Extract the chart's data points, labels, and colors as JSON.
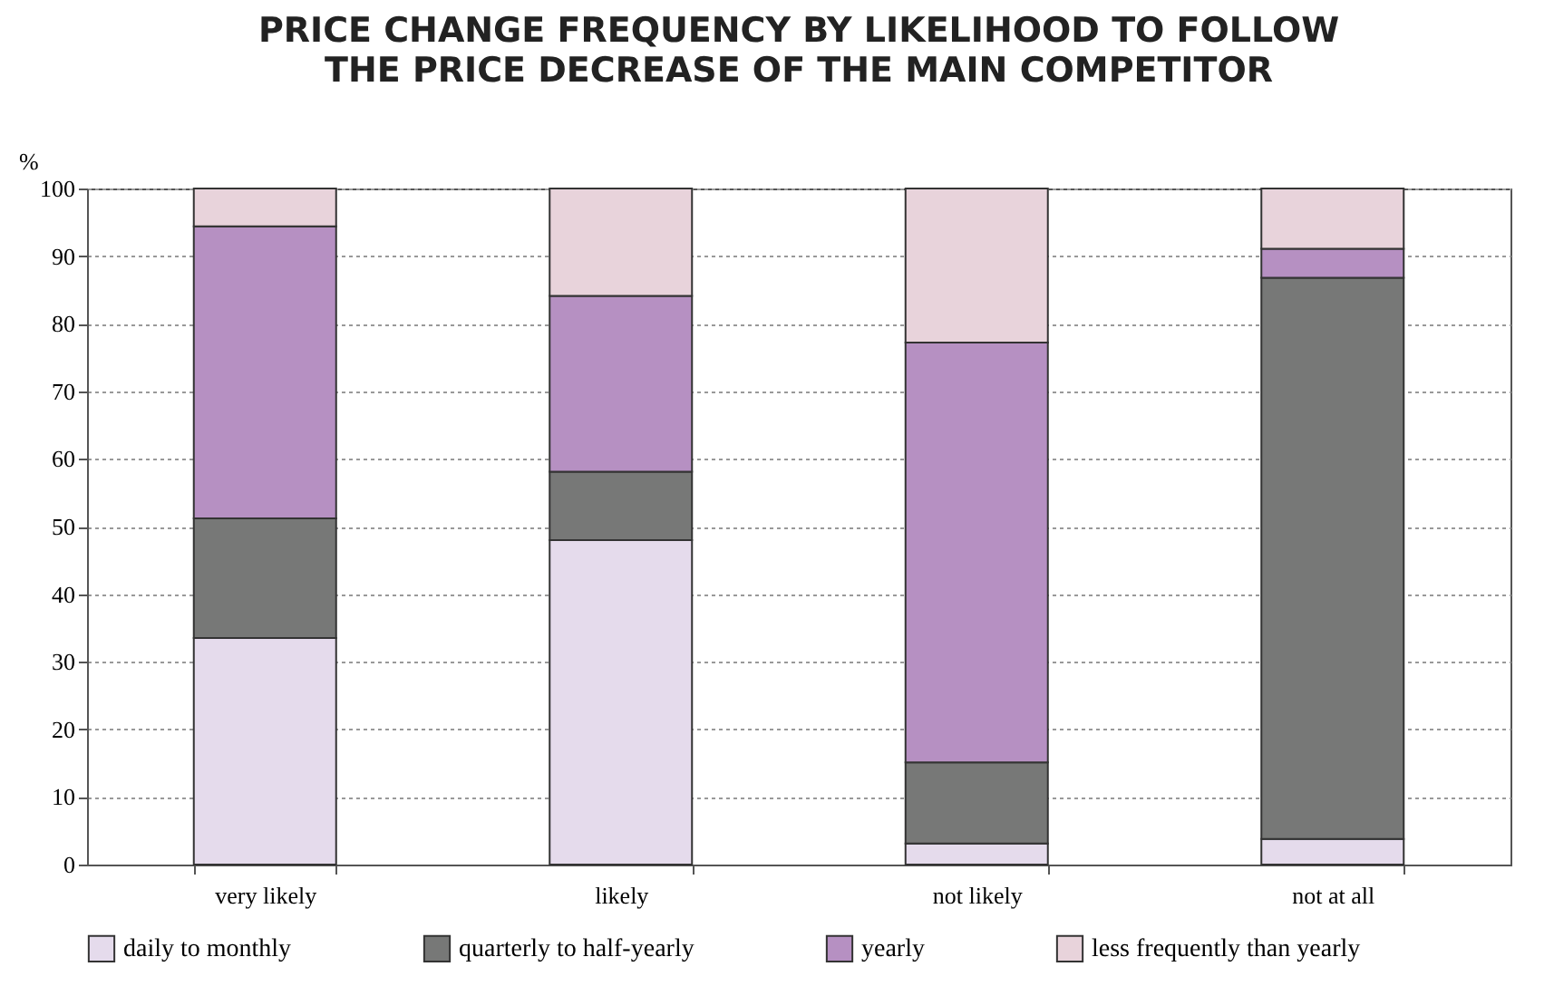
{
  "chart_data": {
    "type": "bar",
    "title": "PRICE CHANGE FREQUENCY BY LIKELIHOOD TO FOLLOW THE PRICE DECREASE OF THE MAIN COMPETITOR",
    "ylabel": "%",
    "categories": [
      "very likely",
      "likely",
      "not likely",
      "not at all"
    ],
    "stacked": true,
    "series": [
      {
        "name": "daily to monthly",
        "color": "#e5dbec",
        "values": [
          33.5,
          48.0,
          3.1,
          3.8
        ]
      },
      {
        "name": "quarterly to half-yearly",
        "color": "#777877",
        "values": [
          17.7,
          10.1,
          12.0,
          83.0
        ]
      },
      {
        "name": "yearly",
        "color": "#b690c2",
        "values": [
          43.2,
          26.0,
          62.1,
          4.3
        ]
      },
      {
        "name": "less frequently than yearly",
        "color": "#e8d3db",
        "values": [
          5.6,
          15.9,
          22.8,
          8.9
        ]
      }
    ],
    "ylim": [
      0,
      100
    ],
    "yticks": [
      0,
      10,
      20,
      30,
      40,
      50,
      60,
      70,
      80,
      90,
      100
    ],
    "grid": "y",
    "legend": "bottom"
  }
}
